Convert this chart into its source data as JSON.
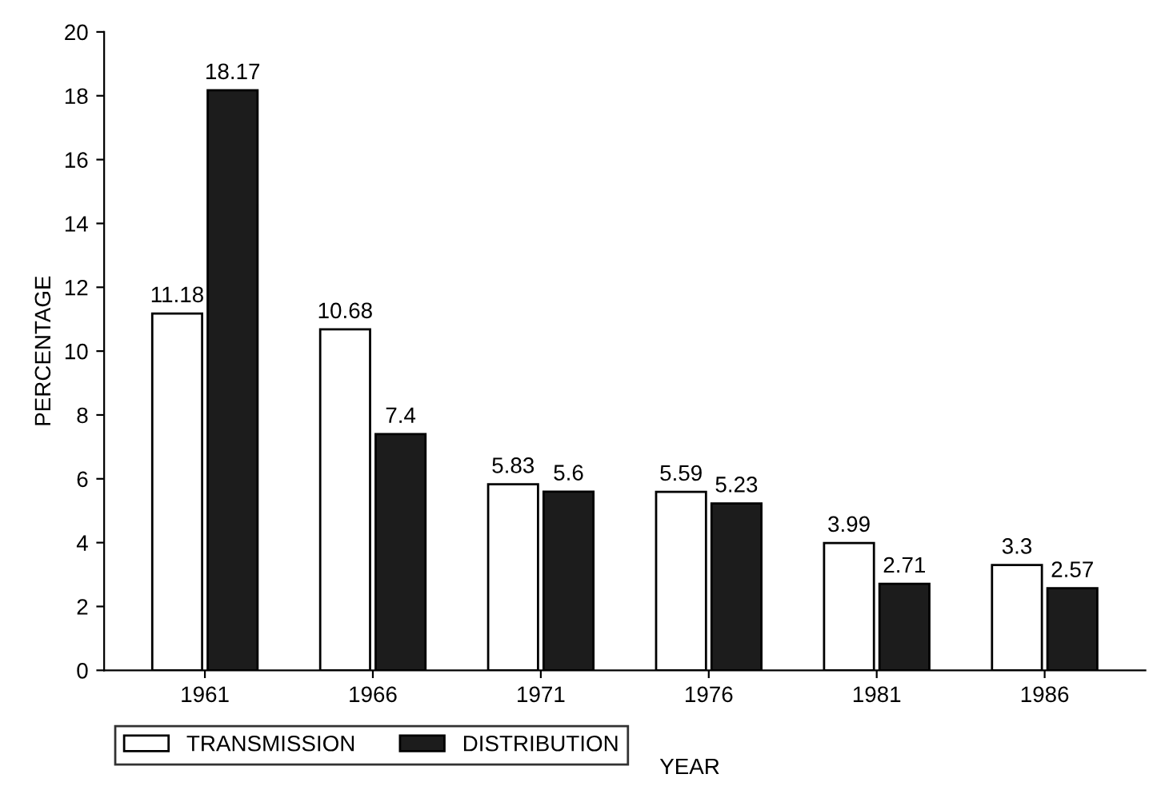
{
  "chart_data": {
    "type": "bar",
    "xlabel": "YEAR",
    "ylabel": "PERCENTAGE",
    "categories": [
      "1961",
      "1966",
      "1971",
      "1976",
      "1981",
      "1986"
    ],
    "series": [
      {
        "name": "TRANSMISSION",
        "color": "#ffffff",
        "values": [
          11.18,
          10.68,
          5.83,
          5.59,
          3.99,
          3.3
        ]
      },
      {
        "name": "DISTRIBUTION",
        "color": "#1c1c1c",
        "values": [
          18.17,
          7.4,
          5.6,
          5.23,
          2.71,
          2.57
        ]
      }
    ],
    "ylim": [
      0,
      20
    ],
    "yticks": [
      0,
      2,
      4,
      6,
      8,
      10,
      12,
      14,
      16,
      18,
      20
    ],
    "data_labels": true,
    "grid": false,
    "legend": "bottom left"
  }
}
